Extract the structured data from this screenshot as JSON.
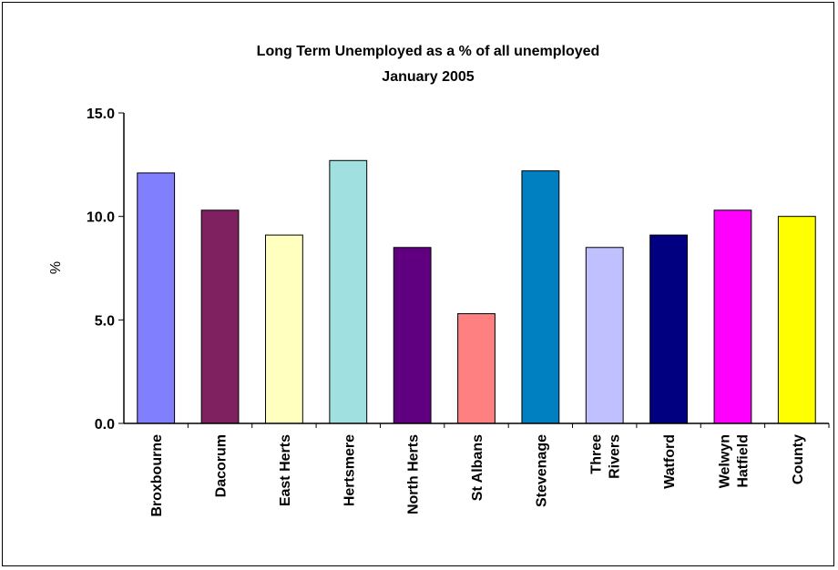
{
  "chart_data": {
    "type": "bar",
    "title": "Long Term Unemployed as a % of all unemployed",
    "subtitle": "January 2005",
    "xlabel": "",
    "ylabel": "%",
    "ylim": [
      0,
      15
    ],
    "yticks": [
      "0.0",
      "5.0",
      "10.0",
      "15.0"
    ],
    "ytick_values": [
      0,
      5,
      10,
      15
    ],
    "grid": false,
    "legend": "none",
    "categories": [
      [
        "Broxbourne"
      ],
      [
        "Dacorum"
      ],
      [
        "East Herts"
      ],
      [
        "Hertsmere"
      ],
      [
        "North Herts"
      ],
      [
        "St Albans"
      ],
      [
        "Stevenage"
      ],
      [
        "Three",
        "Rivers"
      ],
      [
        "Watford"
      ],
      [
        "Welwyn",
        "Hatfield"
      ],
      [
        "County"
      ]
    ],
    "values": [
      12.1,
      10.3,
      9.1,
      12.7,
      8.5,
      5.3,
      12.2,
      8.5,
      9.1,
      10.3,
      10.0
    ],
    "colors": [
      "#8080ff",
      "#7f2060",
      "#ffffc0",
      "#a0e0e0",
      "#600080",
      "#ff8080",
      "#0080c0",
      "#c0c0ff",
      "#000080",
      "#ff00ff",
      "#ffff00"
    ]
  }
}
